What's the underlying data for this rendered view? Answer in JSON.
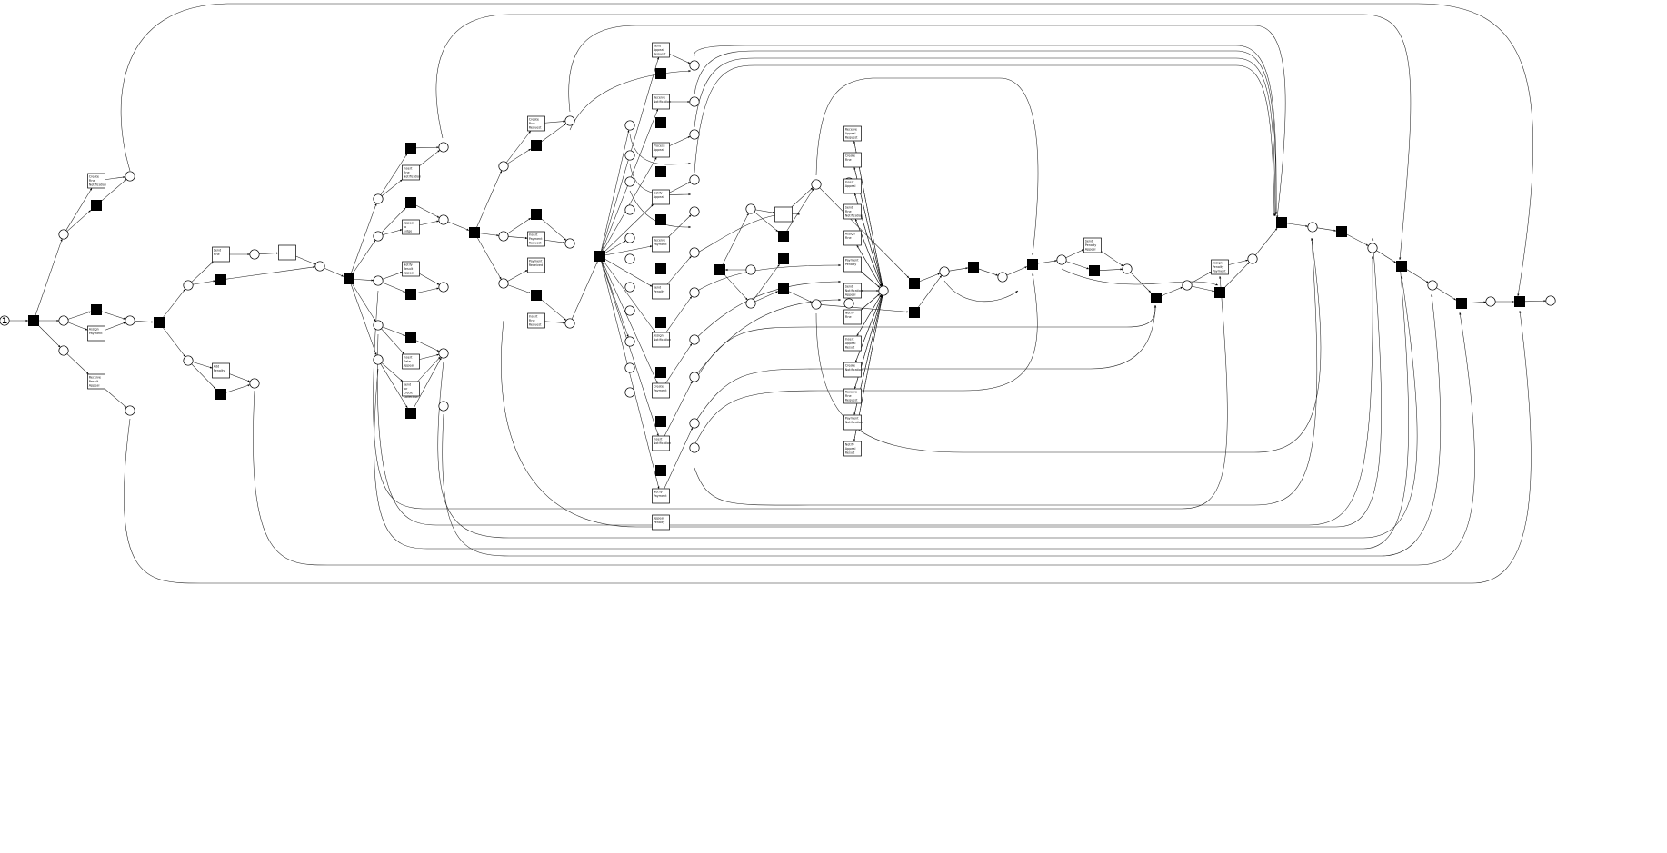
{
  "diagram": {
    "type": "petri-net",
    "initial_marking": "1",
    "transition_labels": {
      "a1": "Create Fine Notification",
      "a2": "Assign Payment",
      "a3": "Receive Result Appeal",
      "b1": "Send Fine",
      "b2": "Add Penalty",
      "c1": "Insert Fine Notification",
      "c2": "Appeal to Judge",
      "c3": "Notify Result Appeal",
      "c4": "Insert Date Appeal",
      "c5": "Send for Credit Collection",
      "d1": "Create Fine Request",
      "d2": "Insert Payment Request",
      "d3": "Payment Received",
      "d4": "Insert Fine Request",
      "e1": "Send Appeal Request",
      "e2": "Receive Notification",
      "e3": "Process Appeal",
      "e4": "Notify Appeal",
      "e5": "Receive Payment",
      "e6": "Send Penalty",
      "e7": "Assign Notification",
      "e8": "Create Payment",
      "e9": "Insert Notification",
      "e10": "Notify Payment",
      "e11": "Appeal Penalty",
      "e12": "Send Notification",
      "e13": "Receive Fine Result",
      "f1": "Receive Appeal Request",
      "f2": "Create Fine",
      "f3": "Insert Appeal",
      "f4": "Send Fine Notification",
      "f5": "Assign Fine",
      "f6": "Payment Penalty",
      "f7": "Send Notification Appeal",
      "f8": "Notify Fine",
      "f9": "Insert Appeal Result",
      "f10": "Create Notification",
      "f11": "Receive Fine Request",
      "f12": "Payment Notification",
      "f13": "Notify Appeal Result",
      "g1": "Assign Penalty Payment",
      "h1": "Send Penalty Appeal"
    }
  }
}
